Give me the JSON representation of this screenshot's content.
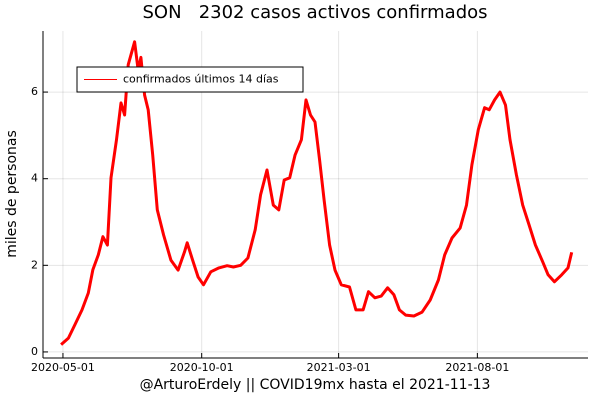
{
  "chart_data": {
    "type": "line",
    "title": "SON   2302 casos activos confirmados",
    "xlabel": "@ArturoErdely || COVID19mx hasta el 2021-11-13",
    "ylabel": "miles de personas",
    "x": [
      "2020-04-29",
      "2020-05-07",
      "2020-05-14",
      "2020-05-22",
      "2020-05-29",
      "2020-06-03",
      "2020-06-09",
      "2020-06-14",
      "2020-06-19",
      "2020-06-23",
      "2020-06-29",
      "2020-07-04",
      "2020-07-08",
      "2020-07-12",
      "2020-07-19",
      "2020-07-23",
      "2020-07-26",
      "2020-07-30",
      "2020-08-03",
      "2020-08-08",
      "2020-08-13",
      "2020-08-20",
      "2020-08-28",
      "2020-09-05",
      "2020-09-12",
      "2020-09-15",
      "2020-09-21",
      "2020-09-27",
      "2020-10-03",
      "2020-10-11",
      "2020-10-20",
      "2020-10-29",
      "2020-11-05",
      "2020-11-13",
      "2020-11-21",
      "2020-11-29",
      "2020-12-05",
      "2020-12-12",
      "2020-12-19",
      "2020-12-25",
      "2020-12-31",
      "2021-01-06",
      "2021-01-12",
      "2021-01-19",
      "2021-01-24",
      "2021-01-29",
      "2021-02-03",
      "2021-02-08",
      "2021-02-13",
      "2021-02-19",
      "2021-02-25",
      "2021-03-04",
      "2021-03-13",
      "2021-03-20",
      "2021-03-28",
      "2021-04-03",
      "2021-04-10",
      "2021-04-17",
      "2021-04-24",
      "2021-05-01",
      "2021-05-07",
      "2021-05-14",
      "2021-05-23",
      "2021-06-01",
      "2021-06-10",
      "2021-06-19",
      "2021-06-26",
      "2021-07-04",
      "2021-07-13",
      "2021-07-20",
      "2021-07-26",
      "2021-08-02",
      "2021-08-09",
      "2021-08-14",
      "2021-08-20",
      "2021-08-26",
      "2021-09-01",
      "2021-09-06",
      "2021-09-13",
      "2021-09-20",
      "2021-09-27",
      "2021-10-04",
      "2021-10-12",
      "2021-10-18",
      "2021-10-25",
      "2021-11-02",
      "2021-11-09",
      "2021-11-13"
    ],
    "series": [
      {
        "name": "confirmados últimos 14 días",
        "color": "#ff0000",
        "values": [
          0.17,
          0.32,
          0.62,
          0.97,
          1.36,
          1.9,
          2.24,
          2.66,
          2.47,
          4.02,
          4.9,
          5.75,
          5.47,
          6.63,
          7.16,
          6.5,
          6.8,
          5.93,
          5.59,
          4.55,
          3.28,
          2.7,
          2.12,
          1.89,
          2.31,
          2.52,
          2.12,
          1.73,
          1.55,
          1.85,
          1.94,
          1.99,
          1.96,
          2.0,
          2.17,
          2.82,
          3.63,
          4.2,
          3.39,
          3.28,
          3.97,
          4.02,
          4.55,
          4.9,
          5.82,
          5.47,
          5.31,
          4.43,
          3.51,
          2.47,
          1.89,
          1.55,
          1.5,
          0.97,
          0.97,
          1.39,
          1.25,
          1.29,
          1.48,
          1.32,
          0.97,
          0.85,
          0.83,
          0.92,
          1.2,
          1.66,
          2.24,
          2.63,
          2.86,
          3.39,
          4.32,
          5.13,
          5.64,
          5.59,
          5.82,
          6.0,
          5.7,
          4.9,
          4.09,
          3.39,
          2.93,
          2.47,
          2.08,
          1.78,
          1.62,
          1.78,
          1.94,
          2.3
        ]
      }
    ],
    "xlim": [
      "2020-04-09",
      "2021-12-01"
    ],
    "xticks": [
      "2020-05-01",
      "2020-10-01",
      "2021-03-01",
      "2021-08-01"
    ],
    "ylim": [
      -0.14,
      7.41
    ],
    "yticks": [
      0,
      2,
      4,
      6
    ],
    "grid": true,
    "legend": "top-left"
  }
}
